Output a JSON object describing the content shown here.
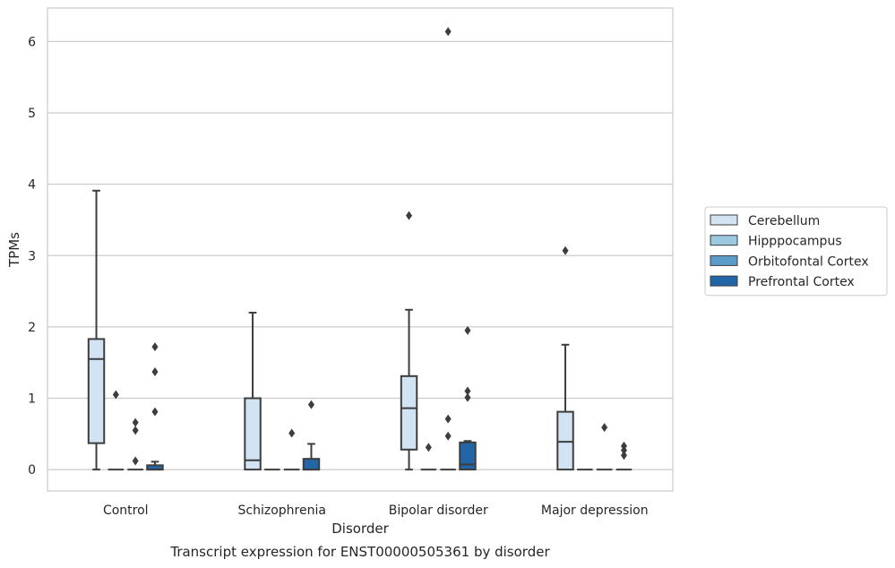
{
  "chart_data": {
    "type": "boxplot",
    "title": "",
    "caption": "Transcript expression for ENST00000505361 by disorder",
    "xlabel": "Disorder",
    "ylabel": "TPMs",
    "ylim": [
      -0.3,
      6.47
    ],
    "yticks": [
      0,
      1,
      2,
      3,
      4,
      5,
      6
    ],
    "grid": "horizontal",
    "legend_position": "right",
    "categories": [
      "Control",
      "Schizophrenia",
      "Bipolar disorder",
      "Major depression"
    ],
    "series": [
      {
        "name": "Cerebellum",
        "color": "#d2e3f3",
        "boxes": [
          {
            "whislo": 0,
            "q1": 0.37,
            "med": 1.55,
            "q3": 1.83,
            "whishi": 3.91,
            "fliers": []
          },
          {
            "whislo": 0,
            "q1": 0,
            "med": 0.13,
            "q3": 1.0,
            "whishi": 2.2,
            "fliers": []
          },
          {
            "whislo": 0,
            "q1": 0.28,
            "med": 0.86,
            "q3": 1.31,
            "whishi": 2.24,
            "fliers": [
              3.56
            ]
          },
          {
            "whislo": 0,
            "q1": 0,
            "med": 0.39,
            "q3": 0.81,
            "whishi": 1.75,
            "fliers": [
              3.07
            ]
          }
        ]
      },
      {
        "name": "Hipppocampus",
        "color": "#9ac8e0",
        "boxes": [
          {
            "whislo": 0,
            "q1": 0,
            "med": 0,
            "q3": 0,
            "whishi": 0,
            "fliers": [
              1.05
            ]
          },
          {
            "whislo": 0,
            "q1": 0,
            "med": 0,
            "q3": 0,
            "whishi": 0,
            "fliers": []
          },
          {
            "whislo": 0,
            "q1": 0,
            "med": 0,
            "q3": 0,
            "whishi": 0,
            "fliers": [
              0.31
            ]
          },
          {
            "whislo": 0,
            "q1": 0,
            "med": 0,
            "q3": 0,
            "whishi": 0,
            "fliers": []
          }
        ]
      },
      {
        "name": "Orbitofontal Cortex",
        "color": "#5a9bc9",
        "boxes": [
          {
            "whislo": 0,
            "q1": 0,
            "med": 0,
            "q3": 0,
            "whishi": 0,
            "fliers": [
              0.12,
              0.55,
              0.66
            ]
          },
          {
            "whislo": 0,
            "q1": 0,
            "med": 0,
            "q3": 0,
            "whishi": 0,
            "fliers": [
              0.51
            ]
          },
          {
            "whislo": 0,
            "q1": 0,
            "med": 0,
            "q3": 0,
            "whishi": 0,
            "fliers": [
              0.47,
              0.71,
              6.14
            ]
          },
          {
            "whislo": 0,
            "q1": 0,
            "med": 0,
            "q3": 0,
            "whishi": 0,
            "fliers": [
              0.59
            ]
          }
        ]
      },
      {
        "name": "Prefrontal Cortex",
        "color": "#2366a8",
        "boxes": [
          {
            "whislo": 0,
            "q1": 0,
            "med": 0,
            "q3": 0.06,
            "whishi": 0.11,
            "fliers": [
              0.81,
              1.37,
              1.72
            ]
          },
          {
            "whislo": 0,
            "q1": 0,
            "med": 0,
            "q3": 0.15,
            "whishi": 0.36,
            "fliers": [
              0.91
            ]
          },
          {
            "whislo": 0,
            "q1": 0,
            "med": 0.07,
            "q3": 0.38,
            "whishi": 0.4,
            "fliers": [
              1.01,
              1.1,
              1.95
            ]
          },
          {
            "whislo": 0,
            "q1": 0,
            "med": 0,
            "q3": 0,
            "whishi": 0,
            "fliers": [
              0.2,
              0.27,
              0.33
            ]
          }
        ]
      }
    ]
  }
}
